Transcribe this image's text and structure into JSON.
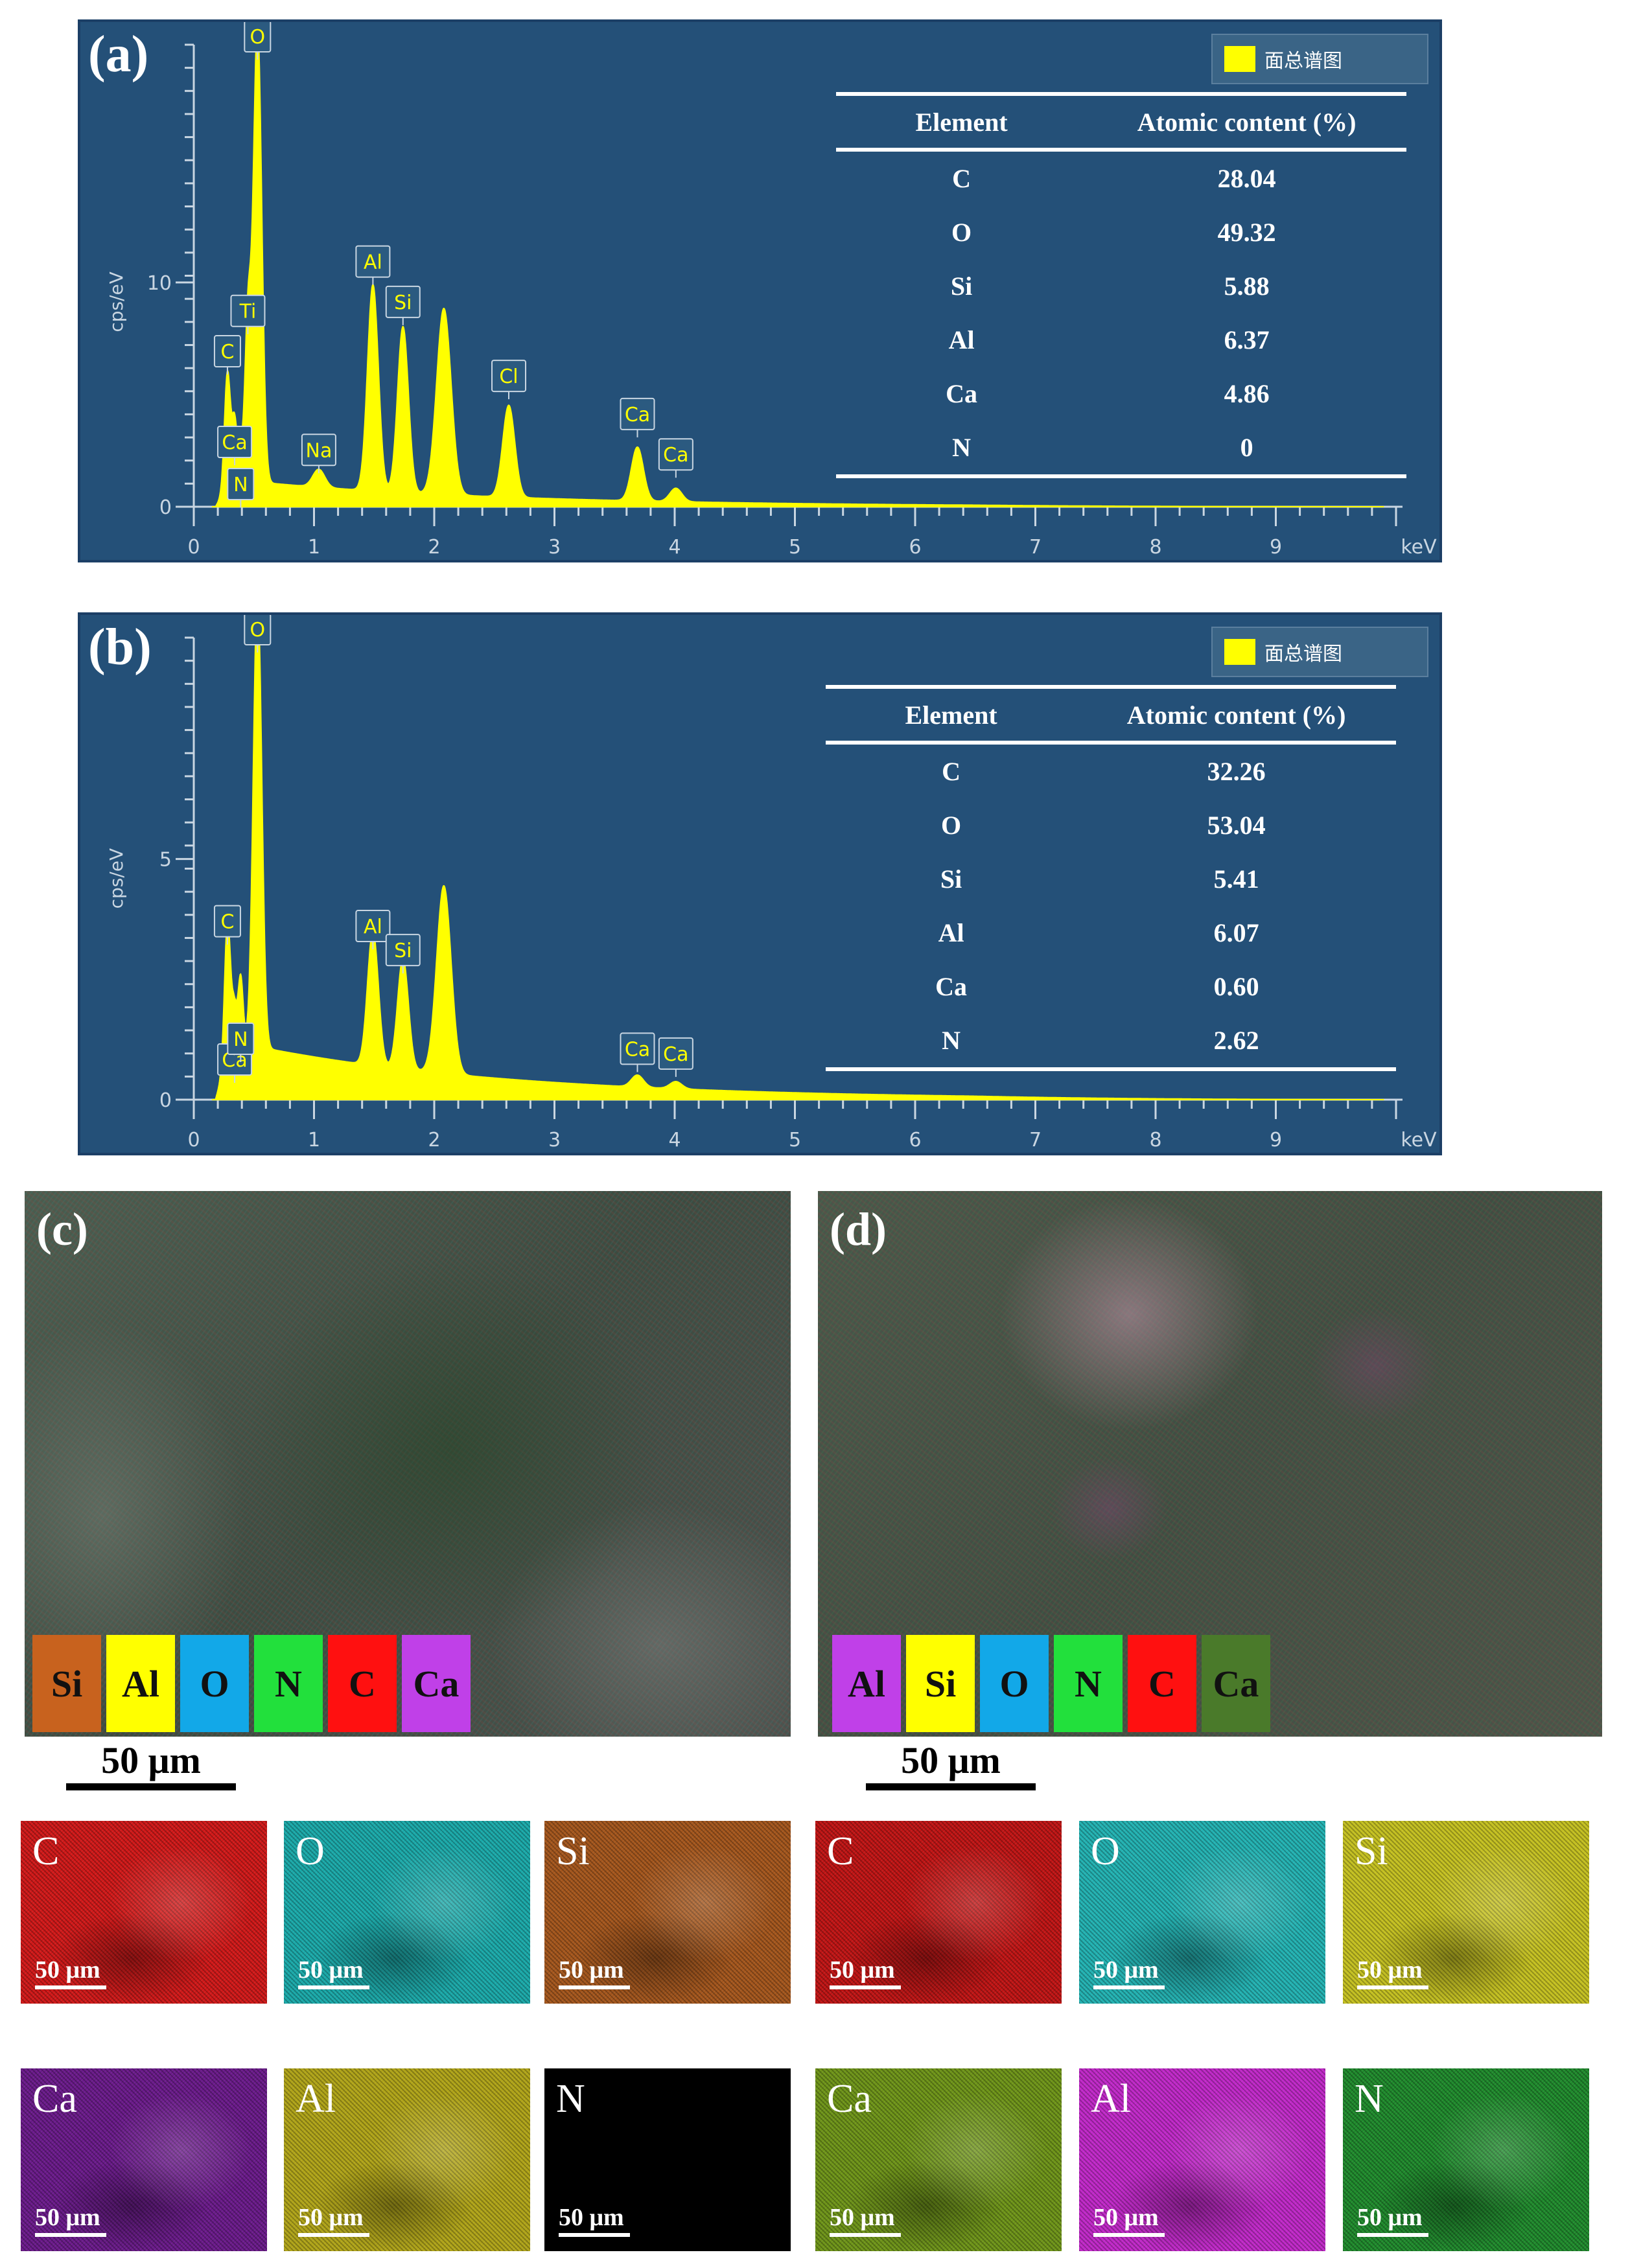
{
  "chart_data": [
    {
      "type": "line",
      "panel_label": "(a)",
      "xlabel": "keV",
      "ylabel": "cps/eV",
      "xlim": [
        0,
        10
      ],
      "ylim": [
        0,
        20.6
      ],
      "x_ticks": [
        0,
        1,
        2,
        3,
        4,
        5,
        6,
        7,
        8,
        9
      ],
      "y_ticks": [
        0,
        10
      ],
      "legend": "面总谱图",
      "legend_position": "top-right",
      "peaks": [
        {
          "x": 0.28,
          "y": 5.2,
          "w": 0.025,
          "label": "C"
        },
        {
          "x": 0.34,
          "y": 2.6,
          "w": 0.02,
          "label": "Ca"
        },
        {
          "x": 0.39,
          "y": 1.3,
          "w": 0.02,
          "label": "N"
        },
        {
          "x": 0.45,
          "y": 7.0,
          "w": 0.025,
          "label": "Ti"
        },
        {
          "x": 0.53,
          "y": 20.5,
          "w": 0.035,
          "label": "O"
        },
        {
          "x": 1.04,
          "y": 0.8,
          "w": 0.05,
          "label": "Na"
        },
        {
          "x": 1.49,
          "y": 9.2,
          "w": 0.045,
          "label": "Al"
        },
        {
          "x": 1.74,
          "y": 7.4,
          "w": 0.045,
          "label": "Si"
        },
        {
          "x": 2.08,
          "y": 8.3,
          "w": 0.06,
          "label": ""
        },
        {
          "x": 2.62,
          "y": 4.1,
          "w": 0.05,
          "label": "Cl"
        },
        {
          "x": 3.69,
          "y": 2.4,
          "w": 0.05,
          "label": "Ca"
        },
        {
          "x": 4.01,
          "y": 0.6,
          "w": 0.05,
          "label": "Ca"
        }
      ],
      "table": {
        "headers": [
          "Element",
          "Atomic content (%)"
        ],
        "rows": [
          [
            "C",
            "28.04"
          ],
          [
            "O",
            "49.32"
          ],
          [
            "Si",
            "5.88"
          ],
          [
            "Al",
            "6.37"
          ],
          [
            "Ca",
            "4.86"
          ],
          [
            "N",
            "0"
          ]
        ]
      }
    },
    {
      "type": "line",
      "panel_label": "(b)",
      "xlabel": "keV",
      "ylabel": "cps/eV",
      "xlim": [
        0,
        10
      ],
      "ylim": [
        0,
        9.6
      ],
      "x_ticks": [
        0,
        1,
        2,
        3,
        4,
        5,
        6,
        7,
        8,
        9
      ],
      "y_ticks": [
        0,
        5
      ],
      "legend": "面总谱图",
      "legend_position": "top-right",
      "peaks": [
        {
          "x": 0.28,
          "y": 2.9,
          "w": 0.025,
          "label": "C"
        },
        {
          "x": 0.34,
          "y": 0.7,
          "w": 0.02,
          "label": "Ca"
        },
        {
          "x": 0.39,
          "y": 1.4,
          "w": 0.02,
          "label": "N"
        },
        {
          "x": 0.53,
          "y": 9.5,
          "w": 0.035,
          "label": "O"
        },
        {
          "x": 1.49,
          "y": 2.8,
          "w": 0.045,
          "label": "Al"
        },
        {
          "x": 1.74,
          "y": 2.3,
          "w": 0.045,
          "label": "Si"
        },
        {
          "x": 2.08,
          "y": 3.9,
          "w": 0.06,
          "label": ""
        },
        {
          "x": 3.69,
          "y": 0.25,
          "w": 0.05,
          "label": "Ca"
        },
        {
          "x": 4.01,
          "y": 0.15,
          "w": 0.05,
          "label": "Ca"
        }
      ],
      "table": {
        "headers": [
          "Element",
          "Atomic content (%)"
        ],
        "rows": [
          [
            "C",
            "32.26"
          ],
          [
            "O",
            "53.04"
          ],
          [
            "Si",
            "5.41"
          ],
          [
            "Al",
            "6.07"
          ],
          [
            "Ca",
            "0.60"
          ],
          [
            "N",
            "2.62"
          ]
        ]
      }
    }
  ],
  "maps": {
    "c": {
      "label": "(c)",
      "swatches": [
        {
          "name": "Si",
          "color": "#c8621e"
        },
        {
          "name": "Al",
          "color": "#ffff00"
        },
        {
          "name": "O",
          "color": "#12a8e8"
        },
        {
          "name": "N",
          "color": "#22e03c"
        },
        {
          "name": "C",
          "color": "#ff1010"
        },
        {
          "name": "Ca",
          "color": "#c040e8"
        }
      ],
      "scale": "50 μm",
      "tiles": [
        {
          "label": "C",
          "color": "#d01818",
          "scale": "50 μm"
        },
        {
          "label": "O",
          "color": "#1aa9a9",
          "scale": "50 μm"
        },
        {
          "label": "Si",
          "color": "#a4561c",
          "scale": "50 μm"
        },
        {
          "label": "Ca",
          "color": "#6a1a8a",
          "scale": "50 μm"
        },
        {
          "label": "Al",
          "color": "#b0a418",
          "scale": "50 μm"
        },
        {
          "label": "N",
          "color": "#000000",
          "scale": "50 μm"
        }
      ]
    },
    "d": {
      "label": "(d)",
      "swatches": [
        {
          "name": "Al",
          "color": "#c040e8"
        },
        {
          "name": "Si",
          "color": "#ffff00"
        },
        {
          "name": "O",
          "color": "#12a8e8"
        },
        {
          "name": "N",
          "color": "#22e03c"
        },
        {
          "name": "C",
          "color": "#ff1010"
        },
        {
          "name": "Ca",
          "color": "#4a7a2a"
        }
      ],
      "scale": "50 μm",
      "tiles": [
        {
          "label": "C",
          "color": "#c01414",
          "scale": "50 μm"
        },
        {
          "label": "O",
          "color": "#22b2b2",
          "scale": "50 μm"
        },
        {
          "label": "Si",
          "color": "#c4c020",
          "scale": "50 μm"
        },
        {
          "label": "Ca",
          "color": "#6e9418",
          "scale": "50 μm"
        },
        {
          "label": "Al",
          "color": "#c028c8",
          "scale": "50 μm"
        },
        {
          "label": "N",
          "color": "#1f8a2c",
          "scale": "50 μm"
        }
      ]
    }
  }
}
